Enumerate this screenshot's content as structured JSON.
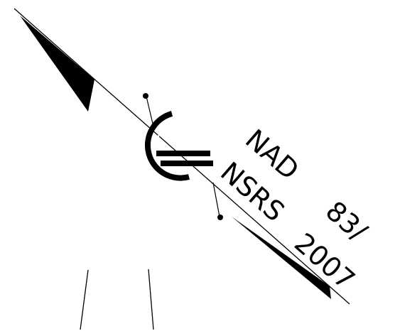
{
  "diagram": {
    "line1": "NAD",
    "line1_number": "83/",
    "line2": "NSRS",
    "line2_number": "2007",
    "colors": {
      "ink": "#000000",
      "background": "#ffffff"
    },
    "icons": [
      "geodetic-marker-circle-icon",
      "equal-bars-icon"
    ]
  }
}
